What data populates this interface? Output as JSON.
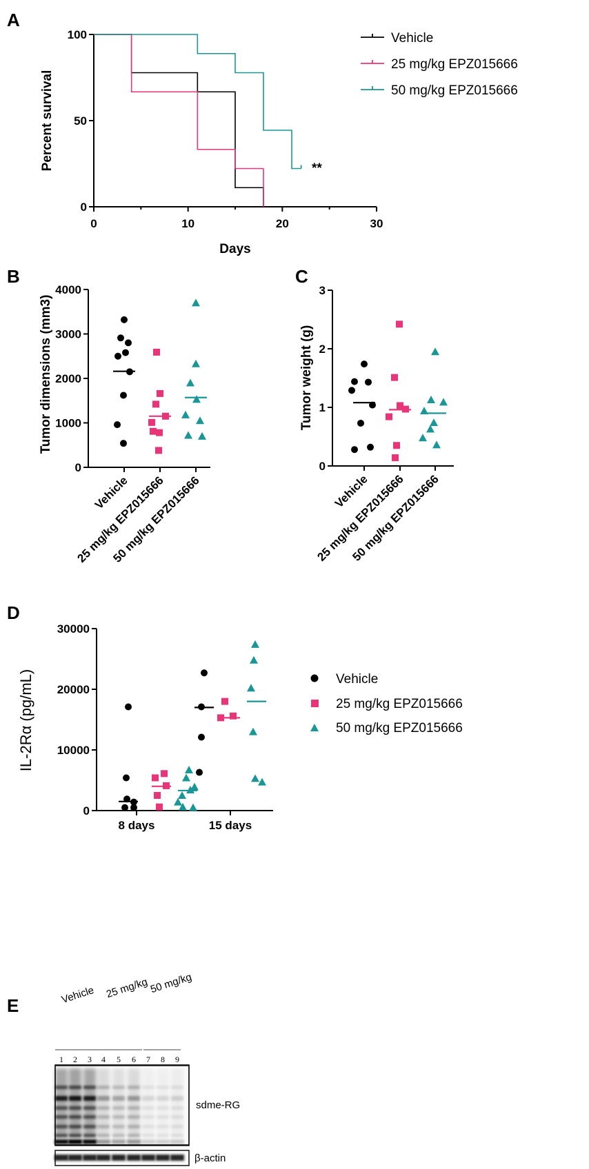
{
  "colors": {
    "vehicle": "#000000",
    "low": "#e8357a",
    "high": "#1a9696"
  },
  "panels": {
    "A": "A",
    "B": "B",
    "C": "C",
    "D": "D",
    "E": "E"
  },
  "chart_data": [
    {
      "panel": "A",
      "type": "line",
      "subtype": "kaplan-meier",
      "xlabel": "Days",
      "ylabel": "Percent survival",
      "xlim": [
        0,
        30
      ],
      "ylim": [
        0,
        100
      ],
      "xticks": [
        0,
        10,
        20,
        30
      ],
      "yticks": [
        0,
        50,
        100
      ],
      "annotation": "**",
      "legend_position": "right",
      "series": [
        {
          "name": "Vehicle",
          "color": "#000000",
          "steps": [
            [
              0,
              100
            ],
            [
              4,
              77.8
            ],
            [
              11,
              66.7
            ],
            [
              15,
              11.1
            ],
            [
              18,
              0
            ]
          ],
          "end": 18
        },
        {
          "name": "25 mg/kg EPZ015666",
          "color": "#e8357a",
          "steps": [
            [
              0,
              100
            ],
            [
              4,
              66.7
            ],
            [
              11,
              33.3
            ],
            [
              15,
              22.2
            ]
          ],
          "end": 18
        },
        {
          "name": "50 mg/kg EPZ015666",
          "color": "#1a9696",
          "steps": [
            [
              0,
              100
            ],
            [
              4,
              100
            ],
            [
              11,
              88.9
            ],
            [
              15,
              77.8
            ],
            [
              18,
              44.4
            ],
            [
              21,
              22.2
            ]
          ],
          "end": 22
        }
      ]
    },
    {
      "panel": "B",
      "type": "scatter",
      "ylabel": "Tumor dimensions (mm3)",
      "ylim": [
        0,
        4000
      ],
      "yticks": [
        0,
        1000,
        2000,
        3000,
        4000
      ],
      "categories": [
        "Vehicle",
        "25 mg/kg EPZ015666",
        "50 mg/kg EPZ015666"
      ],
      "series": [
        {
          "name": "Vehicle",
          "marker": "circle",
          "values": [
            3320,
            2910,
            2800,
            2580,
            2500,
            2150,
            1620,
            960,
            540
          ],
          "mean": 2160
        },
        {
          "name": "25 mg/kg EPZ015666",
          "marker": "square",
          "values": [
            2590,
            1660,
            1420,
            1150,
            1010,
            810,
            780,
            380
          ],
          "mean": 1150
        },
        {
          "name": "50 mg/kg EPZ015666",
          "marker": "triangle",
          "values": [
            3700,
            2330,
            1900,
            1530,
            1180,
            1050,
            720,
            700
          ],
          "mean": 1570
        }
      ]
    },
    {
      "panel": "C",
      "type": "scatter",
      "ylabel": "Tumor weight (g)",
      "ylim": [
        0,
        3
      ],
      "yticks": [
        0,
        1,
        2,
        3
      ],
      "categories": [
        "Vehicle",
        "25 mg/kg EPZ015666",
        "50 mg/kg EPZ015666"
      ],
      "series": [
        {
          "name": "Vehicle",
          "marker": "circle",
          "values": [
            1.74,
            1.44,
            1.43,
            1.29,
            1.04,
            0.73,
            0.32,
            0.28
          ],
          "mean": 1.08
        },
        {
          "name": "25 mg/kg EPZ015666",
          "marker": "square",
          "values": [
            2.42,
            1.51,
            1.03,
            0.97,
            0.84,
            0.35,
            0.14
          ],
          "mean": 0.96
        },
        {
          "name": "50 mg/kg EPZ015666",
          "marker": "triangle",
          "values": [
            1.95,
            1.13,
            1.09,
            0.94,
            0.74,
            0.63,
            0.48,
            0.36
          ],
          "mean": 0.9
        }
      ]
    },
    {
      "panel": "D",
      "type": "scatter",
      "ylabel": "IL-2Rα (pg/mL)",
      "ylim": [
        0,
        30000
      ],
      "yticks": [
        0,
        10000,
        20000,
        30000
      ],
      "categories": [
        "8 days",
        "15 days"
      ],
      "legend_position": "right",
      "series": [
        {
          "name": "Vehicle",
          "marker": "circle",
          "values": [
            [
              17100,
              5400,
              1900,
              1400,
              500,
              500
            ],
            [
              22700,
              17100,
              12100,
              6300
            ]
          ],
          "mean": [
            1500,
            17000
          ]
        },
        {
          "name": "25 mg/kg EPZ015666",
          "marker": "square",
          "values": [
            [
              6100,
              5400,
              4100,
              2500,
              600
            ],
            [
              18000,
              15300,
              15600
            ]
          ],
          "mean": [
            4000,
            15300
          ]
        },
        {
          "name": "50 mg/kg EPZ015666",
          "marker": "triangle",
          "values": [
            [
              6700,
              5400,
              3900,
              3400,
              2500,
              1400,
              600,
              500
            ],
            [
              27400,
              24800,
              20200,
              13000,
              5300,
              4700
            ]
          ],
          "mean": [
            3300,
            18000
          ]
        }
      ]
    }
  ],
  "blot": {
    "groups": [
      "Vehicle",
      "25 mg/kg",
      "50 mg/kg"
    ],
    "lanes": [
      "1",
      "2",
      "3",
      "4",
      "5",
      "6",
      "7",
      "8",
      "9"
    ],
    "labels": [
      "sdme-RG",
      "β-actin"
    ]
  }
}
